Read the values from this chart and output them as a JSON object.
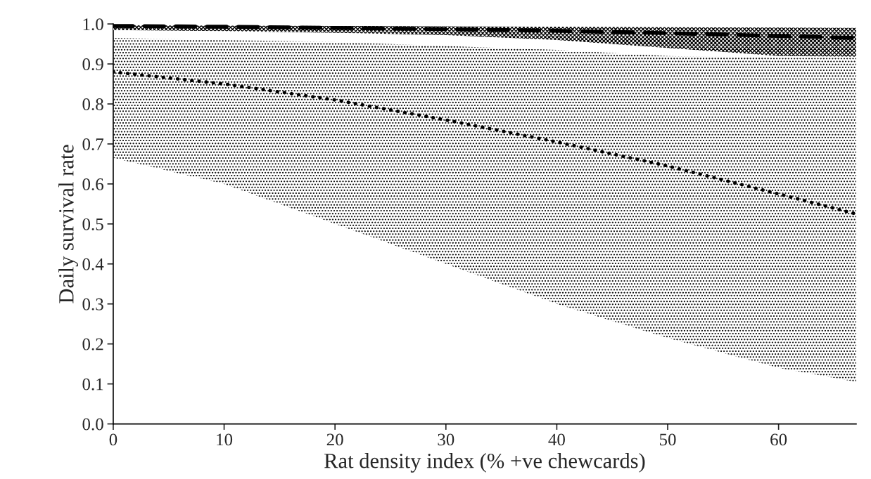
{
  "chart_data": {
    "type": "line",
    "xlabel": "Rat density index (% +ve chewcards)",
    "ylabel": "Daily survival rate",
    "x": [
      0,
      10,
      20,
      30,
      40,
      50,
      60,
      67
    ],
    "series": [
      {
        "color": "#000000",
        "line_style": "dashed",
        "values": [
          0.995,
          0.993,
          0.99,
          0.987,
          0.983,
          0.977,
          0.97,
          0.965
        ],
        "lower": [
          0.985,
          0.982,
          0.978,
          0.972,
          0.96,
          0.94,
          0.92,
          0.918
        ],
        "upper": [
          0.997,
          0.996,
          0.995,
          0.994,
          0.993,
          0.992,
          0.991,
          0.99
        ]
      },
      {
        "color": "#000000",
        "line_style": "dotted",
        "values": [
          0.88,
          0.85,
          0.81,
          0.76,
          0.705,
          0.645,
          0.575,
          0.525
        ],
        "lower": [
          0.665,
          0.6,
          0.5,
          0.4,
          0.3,
          0.215,
          0.14,
          0.105
        ],
        "upper": [
          0.965,
          0.96,
          0.955,
          0.945,
          0.935,
          0.92,
          0.915,
          0.915
        ]
      }
    ],
    "xlim": [
      0,
      67
    ],
    "xticks": [
      0,
      10,
      20,
      30,
      40,
      50,
      60
    ],
    "ylim": [
      0,
      1
    ],
    "yticks": [
      {
        "value": 0,
        "label": "0.0"
      },
      0.1,
      0.2,
      0.3,
      0.4,
      0.5,
      0.6,
      0.7,
      0.8,
      0.9,
      {
        "value": 1,
        "label": "1.0"
      }
    ],
    "grid": false,
    "legend": false
  }
}
